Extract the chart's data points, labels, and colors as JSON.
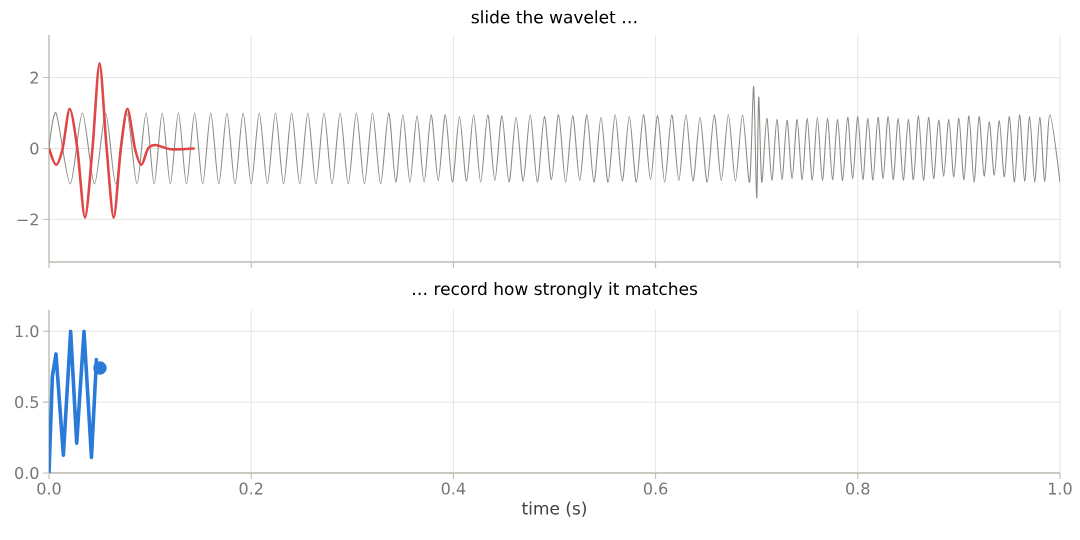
{
  "chart_data": [
    {
      "type": "line",
      "title": "slide the wavelet …",
      "xlim": [
        0,
        1
      ],
      "xticks": [
        {
          "value": 0,
          "label": null
        },
        {
          "value": 0.2,
          "label": null
        },
        {
          "value": 0.4,
          "label": null
        },
        {
          "value": 0.6,
          "label": null
        },
        {
          "value": 0.8,
          "label": null
        },
        {
          "value": 1,
          "label": null
        }
      ],
      "ylim": [
        -3.2,
        3.2
      ],
      "yticks": [
        {
          "value": -2,
          "label": "−2"
        },
        0,
        2
      ],
      "grid": true,
      "tick_labels": "y",
      "series": [
        {
          "color": "#8c8c87",
          "x": [
            0,
            0.007,
            0.021,
            0.033,
            0.045,
            0.056,
            0.066,
            0.077,
            0.087,
            0.096,
            0.104,
            0.112,
            0.12,
            0.128,
            0.136,
            0.144,
            0.152,
            0.16,
            0.168,
            0.176,
            0.184,
            0.192,
            0.2,
            0.208,
            0.216,
            0.224,
            0.232,
            0.24,
            0.248,
            0.256,
            0.264,
            0.272,
            0.28,
            0.288,
            0.296,
            0.304,
            0.312,
            0.32,
            0.328,
            0.336,
            0.343,
            0.35,
            0.357,
            0.364,
            0.371,
            0.378,
            0.385,
            0.392,
            0.399,
            0.406,
            0.413,
            0.42,
            0.427,
            0.434,
            0.441,
            0.448,
            0.455,
            0.462,
            0.469,
            0.476,
            0.483,
            0.49,
            0.497,
            0.504,
            0.511,
            0.518,
            0.525,
            0.532,
            0.539,
            0.546,
            0.553,
            0.56,
            0.567,
            0.574,
            0.581,
            0.588,
            0.595,
            0.602,
            0.609,
            0.616,
            0.623,
            0.63,
            0.637,
            0.644,
            0.651,
            0.658,
            0.665,
            0.672,
            0.679,
            0.686,
            0.693,
            0.697,
            0.7,
            0.702,
            0.705,
            0.71,
            0.715,
            0.72,
            0.725,
            0.73,
            0.735,
            0.74,
            0.745,
            0.75,
            0.755,
            0.76,
            0.765,
            0.77,
            0.775,
            0.78,
            0.785,
            0.79,
            0.795,
            0.8,
            0.805,
            0.81,
            0.815,
            0.82,
            0.825,
            0.83,
            0.835,
            0.84,
            0.845,
            0.85,
            0.855,
            0.86,
            0.865,
            0.87,
            0.875,
            0.88,
            0.885,
            0.89,
            0.895,
            0.9,
            0.905,
            0.91,
            0.915,
            0.92,
            0.925,
            0.93,
            0.935,
            0.94,
            0.945,
            0.95,
            0.955,
            0.96,
            0.965,
            0.97,
            0.975,
            0.98,
            0.985,
            0.99,
            1.0
          ],
          "values": [
            0,
            1,
            -1,
            1,
            -1,
            1,
            -1,
            1,
            -1,
            1,
            -1,
            1,
            -1,
            1,
            -1,
            1,
            -1,
            1,
            -1,
            1,
            -1,
            1,
            -1,
            1,
            -1,
            1,
            -1,
            1,
            -1,
            1,
            -1,
            1,
            -1,
            1,
            -1,
            1,
            -1,
            1,
            -1,
            1,
            -0.95,
            0.95,
            -0.95,
            0.92,
            -0.95,
            0.95,
            -0.9,
            0.95,
            -0.95,
            0.9,
            -0.92,
            0.95,
            -0.95,
            0.95,
            -0.9,
            0.92,
            -0.95,
            0.88,
            -0.92,
            0.95,
            -0.95,
            0.9,
            -0.88,
            0.95,
            -0.95,
            0.92,
            -0.9,
            0.95,
            -0.95,
            0.88,
            -0.95,
            0.95,
            -0.92,
            0.9,
            -0.95,
            0.95,
            -0.88,
            0.92,
            -0.95,
            0.95,
            -0.9,
            0.95,
            -0.92,
            0.88,
            -0.95,
            0.95,
            -0.9,
            0.95,
            -0.92,
            0.95,
            -0.95,
            1.75,
            -1.4,
            1.45,
            -0.95,
            0.85,
            -0.9,
            0.82,
            -0.88,
            0.8,
            -0.85,
            0.82,
            -0.88,
            0.85,
            -0.9,
            0.88,
            -0.9,
            0.85,
            -0.88,
            0.82,
            -0.9,
            0.88,
            -0.85,
            0.9,
            -0.88,
            0.85,
            -0.9,
            0.88,
            -0.85,
            0.9,
            -0.88,
            0.85,
            -0.9,
            0.82,
            -0.88,
            0.92,
            -0.9,
            0.88,
            -0.85,
            0.8,
            -0.78,
            0.82,
            -0.8,
            0.85,
            -0.88,
            0.92,
            -0.95,
            0.9,
            -0.78,
            0.75,
            -0.75,
            0.78,
            -0.8,
            0.9,
            -0.95,
            0.95,
            -0.92,
            0.9,
            -0.95,
            0.88,
            -0.92,
            0.95,
            -0.95
          ]
        },
        {
          "color": "#e04646",
          "x": [
            0,
            0.007,
            0.0135,
            0.0205,
            0.028,
            0.0356,
            0.043,
            0.05,
            0.057,
            0.064,
            0.071,
            0.0776,
            0.085,
            0.0914,
            0.098,
            0.1056,
            0.12,
            0.144
          ],
          "values": [
            0,
            -0.46,
            0,
            1.12,
            0,
            -1.95,
            0,
            2.4,
            0,
            -1.95,
            0,
            1.12,
            0,
            -0.46,
            0,
            0.1,
            -0.02,
            0
          ]
        }
      ]
    },
    {
      "type": "line",
      "title": "… record how strongly it matches",
      "xlabel": "time (s)",
      "xlim": [
        0,
        1
      ],
      "xticks": [
        {
          "value": 0,
          "label": "0.0"
        },
        {
          "value": 0.2,
          "label": "0.2"
        },
        {
          "value": 0.4,
          "label": "0.4"
        },
        {
          "value": 0.6,
          "label": "0.6"
        },
        {
          "value": 0.8,
          "label": "0.8"
        },
        {
          "value": 1,
          "label": "1.0"
        }
      ],
      "ylim": [
        0,
        1.15
      ],
      "yticks": [
        {
          "value": 0,
          "label": "0.0"
        },
        {
          "value": 0.5,
          "label": "0.5"
        },
        {
          "value": 1,
          "label": "1.0"
        }
      ],
      "grid": true,
      "series": [
        {
          "color": "#2a7ad9",
          "x": [
            0,
            0.0033,
            0.0069,
            0.0142,
            0.0214,
            0.0274,
            0.0346,
            0.042,
            0.047
          ],
          "values": [
            0,
            0.68,
            0.84,
            0.126,
            1.0,
            0.21,
            1.0,
            0.11,
            0.81
          ]
        },
        {
          "type": "scatter",
          "marker": "circle",
          "color": "#2a7ad9",
          "x": [
            0.0504
          ],
          "values": [
            0.74
          ]
        }
      ]
    }
  ]
}
